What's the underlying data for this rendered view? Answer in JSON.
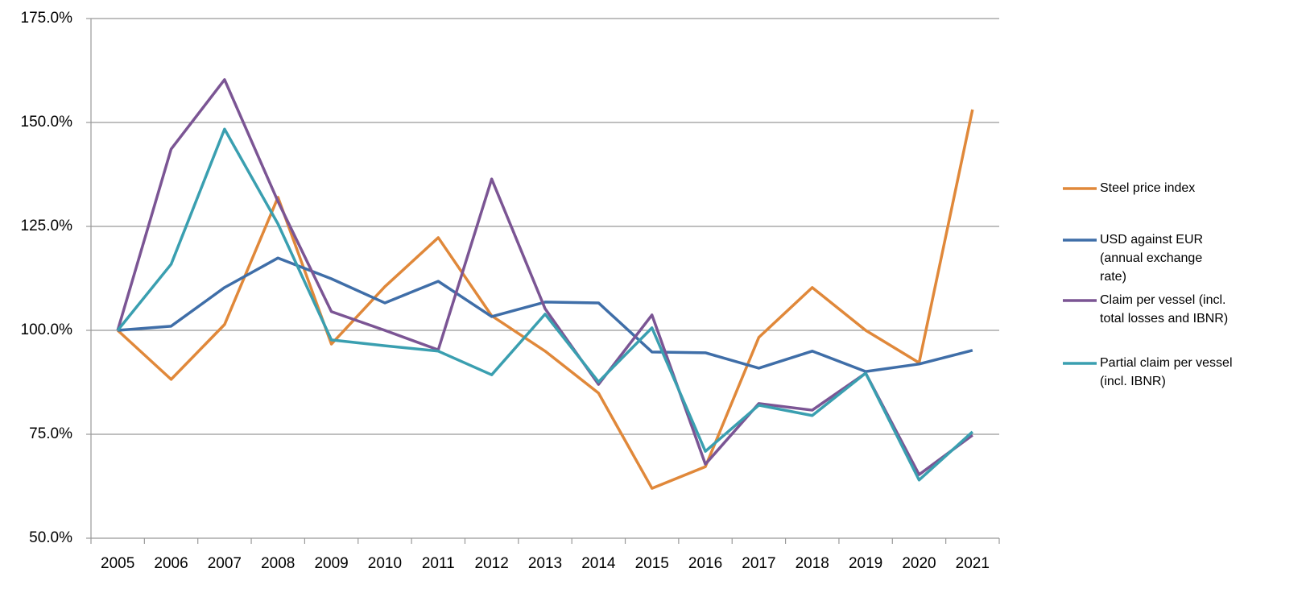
{
  "chart_data": {
    "type": "line",
    "categories": [
      "2005",
      "2006",
      "2007",
      "2008",
      "2009",
      "2010",
      "2011",
      "2012",
      "2013",
      "2014",
      "2015",
      "2016",
      "2017",
      "2018",
      "2019",
      "2020",
      "2021"
    ],
    "series": [
      {
        "name": "Steel price index",
        "color": "#e0883a",
        "values": [
          100,
          88.2,
          101.4,
          132,
          96.7,
          110.5,
          122.3,
          103.5,
          95,
          84.9,
          62,
          67.2,
          98.3,
          110.3,
          100,
          92.2,
          153.1
        ]
      },
      {
        "name": "USD against EUR (annual exchange rate)",
        "color": "#3f6ea8",
        "values": [
          100,
          101,
          110.3,
          117.4,
          112.4,
          106.6,
          111.8,
          103.3,
          106.8,
          106.6,
          94.8,
          94.6,
          90.9,
          95,
          90.1,
          91.9,
          95.2
        ]
      },
      {
        "name": "Claim per vessel (incl. total losses and IBNR)",
        "color": "#7b5594",
        "values": [
          100,
          143.6,
          160.3,
          131,
          104.5,
          100,
          95.3,
          136.4,
          105.2,
          87,
          103.7,
          67.8,
          82.4,
          80.8,
          89.7,
          65.3,
          74.8
        ]
      },
      {
        "name": "Partial claim per vessel (incl. IBNR)",
        "color": "#3a9fb0",
        "values": [
          100,
          115.9,
          148.4,
          125.6,
          97.7,
          96.3,
          95,
          89.3,
          103.9,
          87.6,
          100.6,
          70.9,
          82,
          79.5,
          89.7,
          64,
          75.6
        ]
      }
    ],
    "ylim": [
      50,
      175
    ],
    "yticks": [
      {
        "value": 50,
        "label": "50.0%"
      },
      {
        "value": 75,
        "label": "75.0%"
      },
      {
        "value": 100,
        "label": "100.0%"
      },
      {
        "value": 125,
        "label": "125.0%"
      },
      {
        "value": 150,
        "label": "150.0%"
      },
      {
        "value": 175,
        "label": "175.0%"
      }
    ],
    "grid": true,
    "legend": "right"
  }
}
